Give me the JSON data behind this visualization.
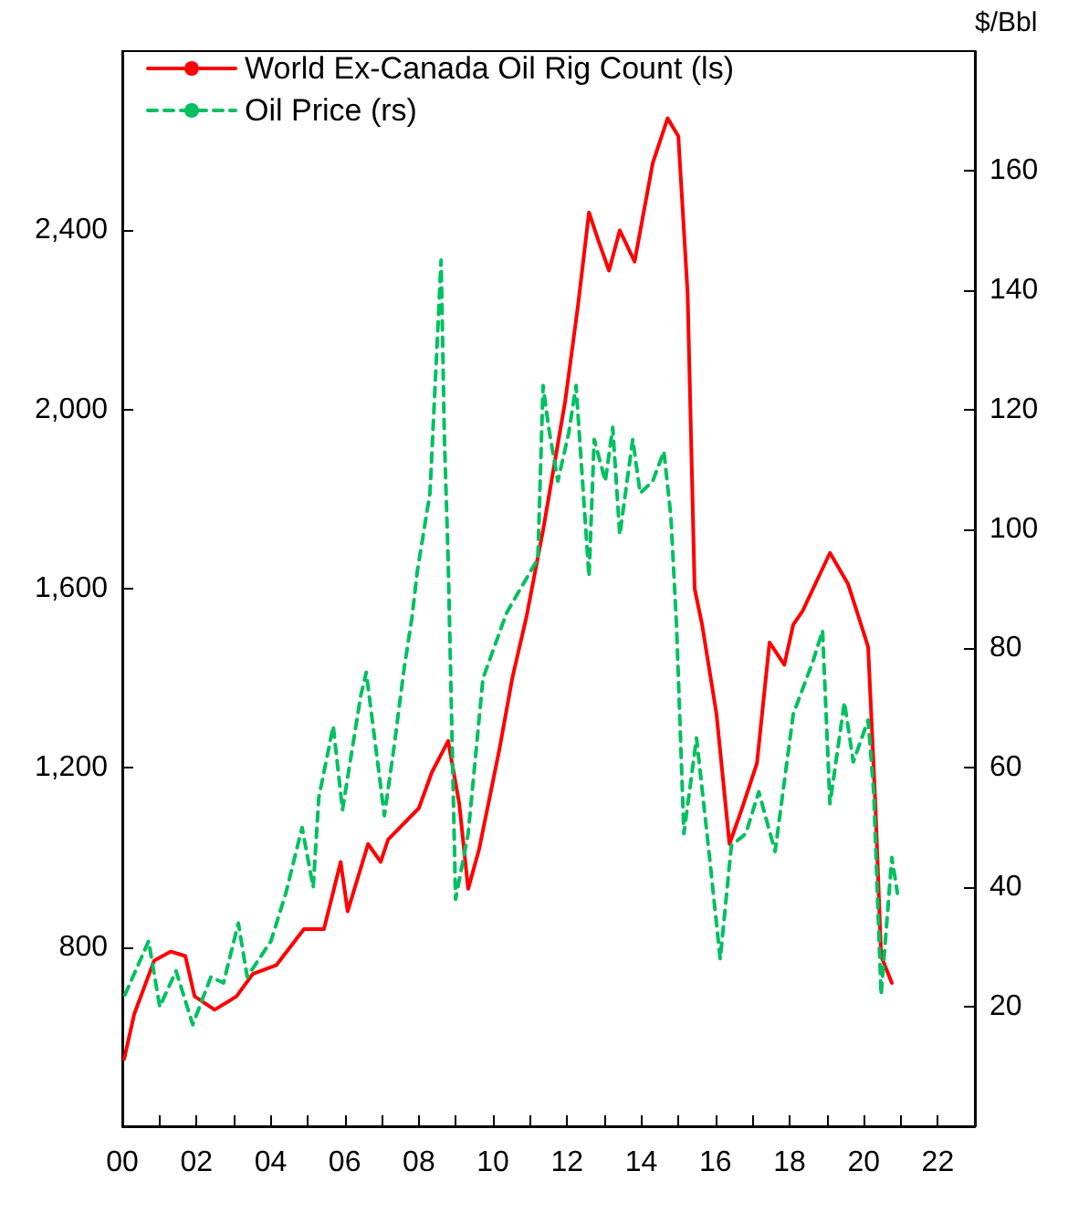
{
  "chart_data": {
    "type": "line",
    "y2label": "$/Bbl",
    "xlim": [
      2000,
      2023
    ],
    "xticks": [
      {
        "value": 2000,
        "label": "00"
      },
      {
        "value": 2001,
        "label": null
      },
      {
        "value": 2002,
        "label": "02"
      },
      {
        "value": 2003,
        "label": null
      },
      {
        "value": 2004,
        "label": "04"
      },
      {
        "value": 2005,
        "label": null
      },
      {
        "value": 2006,
        "label": "06"
      },
      {
        "value": 2007,
        "label": null
      },
      {
        "value": 2008,
        "label": "08"
      },
      {
        "value": 2009,
        "label": null
      },
      {
        "value": 2010,
        "label": "10"
      },
      {
        "value": 2011,
        "label": null
      },
      {
        "value": 2012,
        "label": "12"
      },
      {
        "value": 2013,
        "label": null
      },
      {
        "value": 2014,
        "label": "14"
      },
      {
        "value": 2015,
        "label": null
      },
      {
        "value": 2016,
        "label": "16"
      },
      {
        "value": 2017,
        "label": null
      },
      {
        "value": 2018,
        "label": "18"
      },
      {
        "value": 2019,
        "label": null
      },
      {
        "value": 2020,
        "label": "20"
      },
      {
        "value": 2021,
        "label": null
      },
      {
        "value": 2022,
        "label": "22"
      }
    ],
    "ylim": [
      400,
      2800
    ],
    "yticks": [
      {
        "value": 800,
        "label": "800"
      },
      {
        "value": 1200,
        "label": "1,200"
      },
      {
        "value": 1600,
        "label": "1,600"
      },
      {
        "value": 2000,
        "label": "2,000"
      },
      {
        "value": 2400,
        "label": "2,400"
      }
    ],
    "y2lim": [
      0,
      180
    ],
    "y2ticks": [
      20,
      40,
      60,
      80,
      100,
      120,
      140,
      160
    ],
    "grid": false,
    "legend": "top left",
    "marker": "none",
    "series": [
      {
        "name": "World Ex-Canada Oil Rig Count (ls)",
        "color": "#ff0000",
        "line_style": "solid",
        "x": [
          2000.05,
          2000.32,
          2000.86,
          2001.31,
          2001.7,
          2001.95,
          2002.49,
          2003.08,
          2003.52,
          2004.16,
          2004.9,
          2005.44,
          2005.89,
          2006.08,
          2006.63,
          2006.97,
          2007.17,
          2008.0,
          2008.35,
          2008.79,
          2009.09,
          2009.33,
          2009.63,
          2010.17,
          2010.52,
          2010.91,
          2011.35,
          2011.95,
          2012.29,
          2012.59,
          2012.83,
          2013.13,
          2013.42,
          2013.82,
          2014.31,
          2014.71,
          2015.0,
          2015.25,
          2015.44,
          2015.64,
          2016.03,
          2016.38,
          2016.72,
          2017.12,
          2017.46,
          2017.86,
          2018.1,
          2018.35,
          2019.09,
          2019.58,
          2019.93,
          2020.12,
          2020.32,
          2020.47,
          2020.76
        ],
        "values": [
          550,
          650,
          770,
          790,
          780,
          690,
          660,
          690,
          740,
          760,
          840,
          840,
          990,
          880,
          1030,
          990,
          1040,
          1110,
          1190,
          1260,
          1120,
          930,
          1020,
          1240,
          1400,
          1540,
          1730,
          2020,
          2230,
          2440,
          2380,
          2310,
          2400,
          2330,
          2550,
          2650,
          2610,
          2260,
          1600,
          1520,
          1320,
          1030,
          1110,
          1210,
          1480,
          1430,
          1520,
          1550,
          1680,
          1610,
          1520,
          1470,
          1110,
          780,
          720
        ]
      },
      {
        "name": "Oil Price (rs)",
        "color": "#00c060",
        "line_style": "dashed",
        "axis": "y2",
        "x": [
          2000.07,
          2000.71,
          2001.01,
          2001.45,
          2001.9,
          2002.39,
          2002.73,
          2003.13,
          2003.37,
          2004.01,
          2004.41,
          2004.85,
          2005.15,
          2005.3,
          2005.69,
          2005.94,
          2006.43,
          2006.58,
          2007.07,
          2007.32,
          2007.61,
          2007.81,
          2007.96,
          2008.3,
          2008.5,
          2008.6,
          2008.69,
          2008.79,
          2008.99,
          2009.33,
          2009.73,
          2010.37,
          2011.21,
          2011.35,
          2011.5,
          2011.75,
          2012.04,
          2012.24,
          2012.59,
          2012.73,
          2013.03,
          2013.23,
          2013.42,
          2013.77,
          2013.97,
          2014.31,
          2014.61,
          2014.8,
          2014.95,
          2015.15,
          2015.49,
          2015.79,
          2016.13,
          2016.43,
          2016.82,
          2017.17,
          2017.61,
          2018.1,
          2018.64,
          2018.89,
          2019.09,
          2019.48,
          2019.72,
          2020.12,
          2020.27,
          2020.47,
          2020.76,
          2020.91
        ],
        "values": [
          22,
          31,
          20,
          26,
          17,
          25,
          24,
          34,
          25,
          31,
          39,
          50,
          40,
          55,
          67,
          53,
          72,
          76,
          52,
          63,
          77,
          85,
          93,
          106,
          132,
          145,
          115,
          95,
          38,
          49,
          75,
          86,
          95,
          124,
          117,
          108,
          116,
          124,
          92,
          115,
          108,
          117,
          99,
          115,
          106,
          108,
          113,
          102,
          84,
          49,
          65,
          48,
          28,
          47,
          49,
          56,
          46,
          69,
          78,
          83,
          54,
          71,
          61,
          68,
          56,
          22,
          45,
          39
        ]
      }
    ]
  }
}
